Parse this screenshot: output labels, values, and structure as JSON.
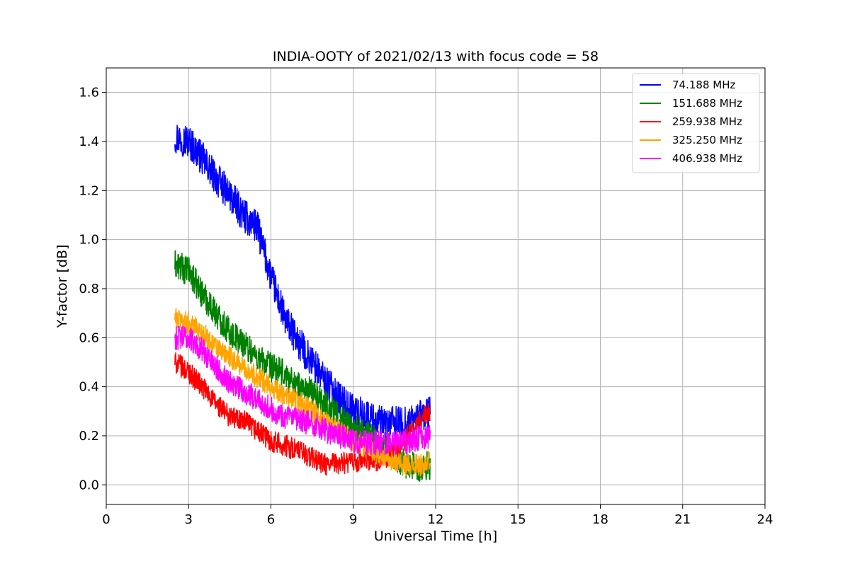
{
  "chart_data": {
    "type": "line",
    "title": "INDIA-OOTY of 2021/02/13 with focus code = 58",
    "xlabel": "Universal Time [h]",
    "ylabel": "Y-factor [dB]",
    "xlim": [
      0,
      24
    ],
    "ylim": [
      -0.08,
      1.7
    ],
    "xticks": [
      0,
      3,
      6,
      9,
      12,
      15,
      18,
      21,
      24
    ],
    "yticks": [
      0.0,
      0.2,
      0.4,
      0.6,
      0.8,
      1.0,
      1.2,
      1.4,
      1.6
    ],
    "ytick_labels": [
      "0.0",
      "0.2",
      "0.4",
      "0.6",
      "0.8",
      "1.0",
      "1.2",
      "1.4",
      "1.6"
    ],
    "grid": true,
    "legend_position": "top-right",
    "x": [
      2.5,
      3.0,
      3.5,
      4.0,
      4.5,
      5.0,
      5.5,
      6.0,
      6.5,
      7.0,
      7.5,
      8.0,
      8.5,
      9.0,
      9.5,
      10.0,
      10.5,
      11.0,
      11.5,
      11.8
    ],
    "series": [
      {
        "name": " 74.188 MHz",
        "color": "#0000ff",
        "values": [
          1.42,
          1.4,
          1.33,
          1.25,
          1.18,
          1.1,
          1.05,
          0.85,
          0.68,
          0.58,
          0.5,
          0.42,
          0.35,
          0.3,
          0.28,
          0.25,
          0.25,
          0.25,
          0.28,
          0.3
        ]
      },
      {
        "name": "151.688 MHz",
        "color": "#008000",
        "values": [
          0.9,
          0.87,
          0.78,
          0.7,
          0.62,
          0.58,
          0.52,
          0.48,
          0.45,
          0.4,
          0.38,
          0.33,
          0.28,
          0.23,
          0.2,
          0.17,
          0.12,
          0.08,
          0.07,
          0.08
        ]
      },
      {
        "name": "259.938 MHz",
        "color": "#ff0000",
        "values": [
          0.5,
          0.46,
          0.4,
          0.33,
          0.28,
          0.26,
          0.22,
          0.18,
          0.16,
          0.14,
          0.11,
          0.08,
          0.09,
          0.09,
          0.1,
          0.1,
          0.13,
          0.2,
          0.27,
          0.3
        ]
      },
      {
        "name": "325.250 MHz",
        "color": "#ffa500",
        "values": [
          0.68,
          0.66,
          0.62,
          0.56,
          0.52,
          0.48,
          0.44,
          0.4,
          0.36,
          0.34,
          0.3,
          0.26,
          0.22,
          0.18,
          0.15,
          0.12,
          0.1,
          0.08,
          0.08,
          0.1
        ]
      },
      {
        "name": "406.938 MHz",
        "color": "#ff00ff",
        "values": [
          0.6,
          0.6,
          0.55,
          0.48,
          0.42,
          0.38,
          0.35,
          0.31,
          0.28,
          0.26,
          0.25,
          0.22,
          0.2,
          0.18,
          0.17,
          0.17,
          0.17,
          0.18,
          0.19,
          0.2
        ]
      }
    ]
  }
}
